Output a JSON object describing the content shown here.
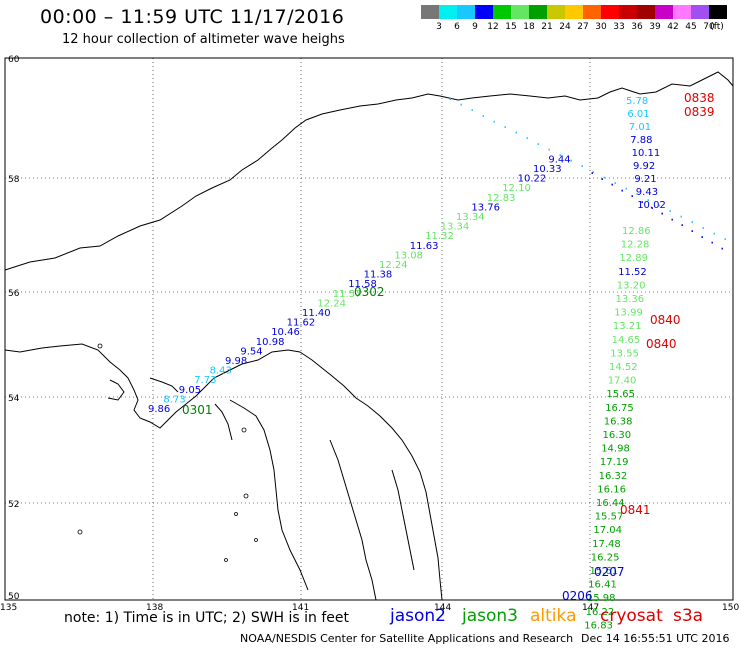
{
  "title": "00:00 – 11:59 UTC 11/17/2016",
  "subtitle": "12 hour collection of altimeter wave heighs",
  "scale": {
    "unit_label": "(ft)",
    "colors": [
      "#777777",
      "#00f0f0",
      "#19c8ff",
      "#0000ff",
      "#00c800",
      "#64e664",
      "#00a000",
      "#c8c800",
      "#ffc800",
      "#ff6400",
      "#ff0000",
      "#c80000",
      "#a00000",
      "#c800c8",
      "#ff78ff",
      "#a050f0",
      "#000000"
    ],
    "labels": [
      "3",
      "6",
      "9",
      "12",
      "15",
      "18",
      "21",
      "24",
      "27",
      "30",
      "33",
      "36",
      "39",
      "42",
      "45",
      "70"
    ]
  },
  "axes": {
    "lat_labels": [
      "60",
      "58",
      "56",
      "54",
      "52",
      "50"
    ],
    "lon_labels": [
      "135",
      "138",
      "141",
      "144",
      "147",
      "150"
    ]
  },
  "note": "note: 1) Time is in UTC; 2) SWH is in feet",
  "legend": [
    {
      "name": "jason2",
      "color": "#0000e0"
    },
    {
      "name": "jason3",
      "color": "#00a000"
    },
    {
      "name": "altika",
      "color": "#ff9900"
    },
    {
      "name": "cryosat",
      "color": "#e00000"
    },
    {
      "name": "s3a",
      "color": "#e00000"
    }
  ],
  "footer": "NOAA/NESDIS Center for Satellite Applications and Research",
  "footer_date": "Dec 14 16:55:51 UTC 2016",
  "tracks": {
    "jason3_a": [
      "9.86",
      "8.73",
      "9.05",
      "7.73",
      "8.43",
      "9.98",
      "9.54",
      "10.98",
      "10.46",
      "11.62",
      "11.40",
      "12.24",
      "11.57",
      "11.58",
      "11.38",
      "12.24",
      "13.08",
      "11.63",
      "11.32",
      "13.34",
      "13.34",
      "13.76",
      "12.83",
      "12.10",
      "10.22",
      "10.33",
      "9.44"
    ],
    "jason3_b": [
      "12.86",
      "12.28",
      "12.89",
      "11.52",
      "13.20",
      "13.36",
      "13.99",
      "13.21",
      "14.65",
      "13.55",
      "14.52",
      "17.40",
      "15.65",
      "16.75",
      "16.38",
      "16.30",
      "14.98",
      "17.19",
      "16.32",
      "16.16",
      "16.44",
      "15.57",
      "17.04",
      "17.48",
      "16.25",
      "15.61",
      "16.41",
      "15.98",
      "16.22",
      "16.83"
    ],
    "jason2_a": [
      "5.78",
      "6.01",
      "7.01",
      "7.88",
      "10.11",
      "9.92",
      "9.21",
      "9.43",
      "10.02"
    ],
    "time_labels": [
      "0302",
      "0301",
      "0840",
      "0840",
      "0841",
      "0838",
      "0839",
      "0207",
      "0206"
    ]
  }
}
